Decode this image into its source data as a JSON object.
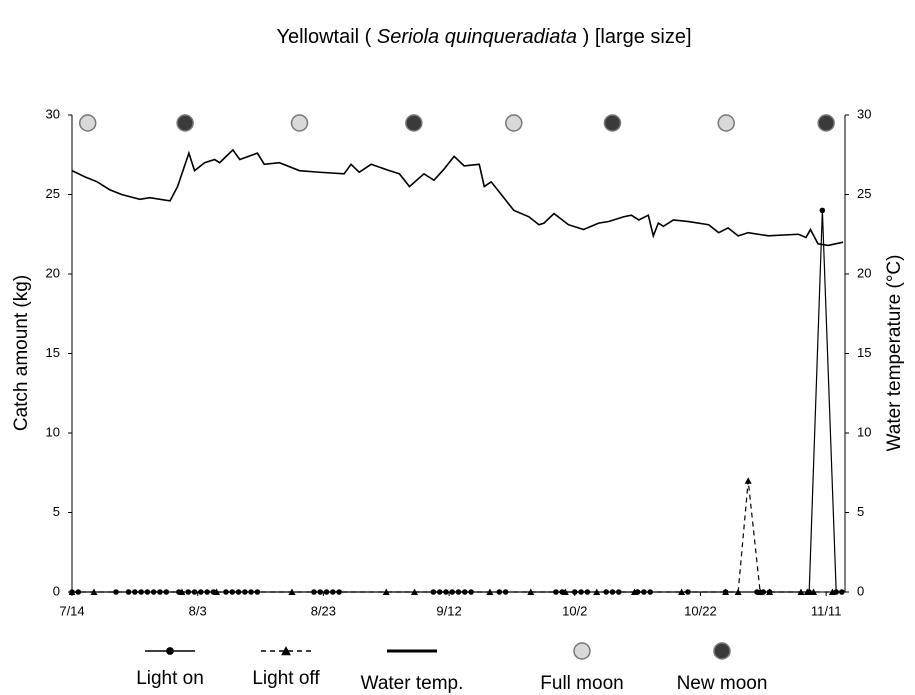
{
  "chart_data": {
    "type": "line",
    "title": [
      "Yellowtail  ( ",
      "Seriola quinqueradiata",
      " )  [large size]"
    ],
    "ylabel": "Catch amount (kg)",
    "y2label": "Water temperature (°C)",
    "xlim": [
      0,
      123
    ],
    "xticks": [
      {
        "value": 0,
        "label": "7/14"
      },
      {
        "value": 20,
        "label": "8/3"
      },
      {
        "value": 40,
        "label": "8/23"
      },
      {
        "value": 60,
        "label": "9/12"
      },
      {
        "value": 80,
        "label": "10/2"
      },
      {
        "value": 100,
        "label": "10/22"
      },
      {
        "value": 120,
        "label": "11/11"
      }
    ],
    "ylim": [
      0,
      30
    ],
    "yticks": [
      0,
      5,
      10,
      15,
      20,
      25,
      30
    ],
    "y2lim": [
      0,
      30
    ],
    "y2ticks": [
      0,
      5,
      10,
      15,
      20,
      25,
      30
    ],
    "series": [
      {
        "name": "Light on",
        "color": "#000000",
        "marker": "circle",
        "dashed": false,
        "x": [
          0,
          1,
          7,
          9,
          10,
          11,
          12,
          13,
          14,
          15,
          17,
          18.5,
          19.5,
          20.5,
          21.5,
          22.5,
          24.5,
          25.5,
          26.5,
          27.5,
          28.5,
          29.5,
          38.5,
          39.5,
          40.5,
          41.5,
          42.5,
          57.5,
          58.5,
          59.5,
          60.5,
          61.5,
          62.5,
          63.5,
          68,
          69,
          77,
          78,
          80,
          81,
          82,
          85,
          86,
          87,
          90,
          91,
          92,
          98,
          104,
          109,
          110,
          111,
          117.3,
          119.4,
          121.6,
          122.5
        ],
        "values": [
          0,
          0,
          0,
          0,
          0,
          0,
          0,
          0,
          0,
          0,
          0,
          0,
          0,
          0,
          0,
          0,
          0,
          0,
          0,
          0,
          0,
          0,
          0,
          0,
          0,
          0,
          0,
          0,
          0,
          0,
          0,
          0,
          0,
          0,
          0,
          0,
          0,
          0,
          0,
          0,
          0,
          0,
          0,
          0,
          0,
          0,
          0,
          0,
          0,
          0,
          0,
          0,
          0,
          24,
          0,
          0
        ]
      },
      {
        "name": "Light off",
        "color": "#000000",
        "marker": "triangle",
        "dashed": true,
        "x": [
          0,
          3.5,
          17.5,
          23,
          35,
          50,
          54.5,
          66.5,
          73,
          78.5,
          83.5,
          89.5,
          97,
          104,
          106,
          107.6,
          109.5,
          111,
          116,
          117,
          118,
          121
        ],
        "values": [
          0,
          0,
          0,
          0,
          0,
          0,
          0,
          0,
          0,
          0,
          0,
          0,
          0,
          0,
          0,
          7,
          0,
          0,
          0,
          0,
          0,
          0
        ]
      },
      {
        "name": "Water temp.",
        "color": "#000000",
        "axis": "y2",
        "marker": "none",
        "dashed": false,
        "x": [
          0,
          2.1,
          4,
          6,
          7.9,
          10.8,
          12.4,
          15.6,
          16.8,
          18.6,
          19.5,
          21.1,
          22.7,
          23.5,
          24.8,
          25.6,
          26.7,
          29.5,
          30.6,
          33,
          36.2,
          39.4,
          43.3,
          44.4,
          45.7,
          47.6,
          50.5,
          52.1,
          53.7,
          56,
          57.6,
          59.2,
          60.8,
          62.4,
          64.8,
          65.6,
          66.7,
          68.7,
          70.3,
          72.7,
          74.3,
          75.1,
          76.7,
          79,
          81.4,
          83.8,
          85.4,
          87.8,
          89,
          90.2,
          91.7,
          92.5,
          93.3,
          94.1,
          95.7,
          98.1,
          101.3,
          102.9,
          104.4,
          106,
          107.6,
          110.8,
          115.6,
          116.8,
          117.5,
          118.7,
          120.3,
          122.7
        ],
        "values": [
          26.5,
          26.1,
          25.8,
          25.3,
          25.0,
          24.7,
          24.8,
          24.6,
          25.5,
          27.6,
          26.5,
          27.0,
          27.2,
          27.0,
          27.5,
          27.8,
          27.2,
          27.6,
          26.9,
          27.0,
          26.5,
          26.4,
          26.3,
          26.9,
          26.4,
          26.9,
          26.5,
          26.3,
          25.5,
          26.3,
          25.9,
          26.6,
          27.4,
          26.8,
          26.9,
          25.5,
          25.8,
          24.8,
          24.0,
          23.6,
          23.1,
          23.2,
          23.8,
          23.1,
          22.8,
          23.2,
          23.3,
          23.6,
          23.7,
          23.4,
          23.7,
          22.4,
          23.2,
          23.0,
          23.4,
          23.3,
          23.1,
          22.6,
          22.9,
          22.4,
          22.6,
          22.4,
          22.5,
          22.3,
          22.8,
          21.9,
          21.8,
          22.0
        ]
      },
      {
        "name": "Full moon",
        "color": "#d9d9d9",
        "marker": "moon",
        "x": [
          2.5,
          36.2,
          70.3,
          104.1
        ]
      },
      {
        "name": "New moon",
        "color": "#3a3a3a",
        "marker": "moon",
        "x": [
          18,
          54.4,
          86,
          120
        ]
      }
    ]
  }
}
